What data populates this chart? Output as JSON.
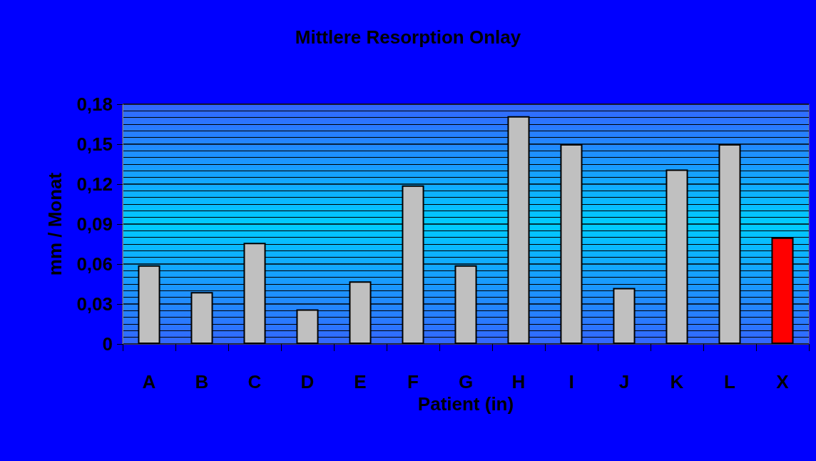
{
  "chart_data": {
    "type": "bar",
    "title": "Mittlere Resorption Onlay",
    "xlabel": "Patient (in)",
    "ylabel": "mm / Monat",
    "categories": [
      "A",
      "B",
      "C",
      "D",
      "E",
      "F",
      "G",
      "H",
      "I",
      "J",
      "K",
      "L",
      "X"
    ],
    "values": [
      0.059,
      0.039,
      0.076,
      0.026,
      0.047,
      0.119,
      0.059,
      0.171,
      0.15,
      0.042,
      0.131,
      0.15,
      0.08
    ],
    "colors": [
      "#c0c0c0",
      "#c0c0c0",
      "#c0c0c0",
      "#c0c0c0",
      "#c0c0c0",
      "#c0c0c0",
      "#c0c0c0",
      "#c0c0c0",
      "#c0c0c0",
      "#c0c0c0",
      "#c0c0c0",
      "#c0c0c0",
      "#ff0000"
    ],
    "ylim": [
      0,
      0.18
    ],
    "yticks": [
      0,
      {
        "value": 0.03,
        "label": "0,03"
      },
      {
        "value": 0.06,
        "label": "0,06"
      },
      {
        "value": 0.09,
        "label": "0,09"
      },
      {
        "value": 0.12,
        "label": "0,12"
      },
      {
        "value": 0.15,
        "label": "0,15"
      },
      {
        "value": 0.18,
        "label": "0,18"
      }
    ],
    "grid": true
  }
}
